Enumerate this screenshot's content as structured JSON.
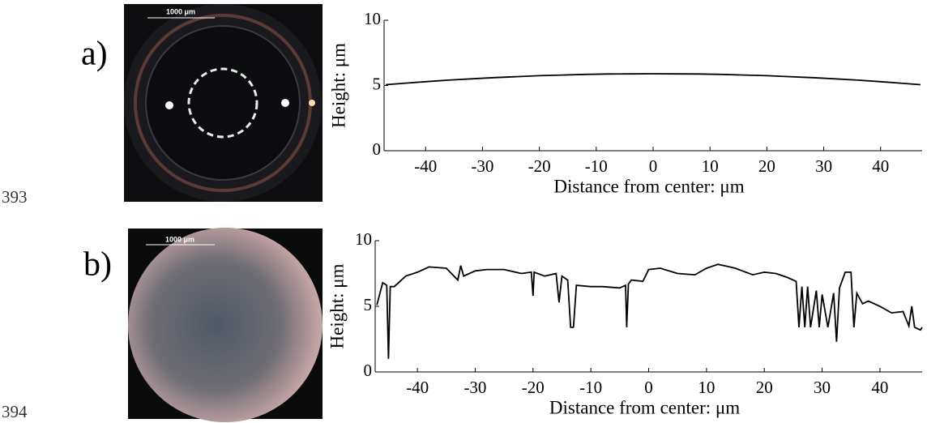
{
  "figure": {
    "line_numbers": [
      "393",
      "394"
    ],
    "panels": [
      {
        "label": "a)",
        "scale_bar": "1000 μm"
      },
      {
        "label": "b)",
        "scale_bar": "1000 μm"
      }
    ]
  },
  "chart_data": [
    {
      "type": "line",
      "xlabel": "Distance from center: μm",
      "ylabel": "Height: μm",
      "color": "#000000",
      "x": [
        -47,
        -44,
        -40,
        -36,
        -32,
        -28,
        -24,
        -20,
        -16,
        -12,
        -8,
        -4,
        0,
        4,
        8,
        12,
        16,
        20,
        24,
        28,
        32,
        36,
        40,
        44,
        47
      ],
      "values": [
        5.06,
        5.16,
        5.29,
        5.41,
        5.51,
        5.6,
        5.68,
        5.75,
        5.8,
        5.85,
        5.88,
        5.89,
        5.9,
        5.89,
        5.88,
        5.85,
        5.8,
        5.75,
        5.68,
        5.6,
        5.51,
        5.41,
        5.29,
        5.16,
        5.06
      ],
      "xlim": [
        -47.3,
        47.3
      ],
      "ylim": [
        0,
        10
      ],
      "xticks": [
        -40,
        -30,
        -20,
        -10,
        0,
        10,
        20,
        30,
        40
      ],
      "yticks": [
        0,
        5,
        10
      ]
    },
    {
      "type": "line",
      "xlabel": "Distance from center: μm",
      "ylabel": "Height: μm",
      "color": "#000000",
      "x": [
        -47,
        -46,
        -45.3,
        -45,
        -44.7,
        -44,
        -42,
        -40,
        -38,
        -35,
        -33,
        -32.5,
        -32,
        -30,
        -28,
        -25,
        -22,
        -20.3,
        -20,
        -19.8,
        -18,
        -16,
        -15.5,
        -15,
        -14,
        -13.5,
        -13,
        -12.5,
        -10,
        -8,
        -5,
        -4,
        -3.8,
        -3.5,
        -3,
        -1,
        0,
        2,
        5,
        8,
        10,
        12,
        15,
        18,
        20,
        22,
        24,
        25.5,
        26,
        26.5,
        27,
        27.5,
        28,
        29,
        29.5,
        30,
        31,
        32,
        32.5,
        33,
        34,
        35,
        35.5,
        36,
        37,
        38,
        40,
        42,
        44,
        45,
        45.5,
        46,
        47,
        47.3
      ],
      "values": [
        5.1,
        6.8,
        6.6,
        1.0,
        6.5,
        6.5,
        7.3,
        7.6,
        8.0,
        7.9,
        7.0,
        8.1,
        7.3,
        7.7,
        7.8,
        7.8,
        7.5,
        7.6,
        5.8,
        7.6,
        7.3,
        7.5,
        5.3,
        7.3,
        7.0,
        3.4,
        3.4,
        6.6,
        6.5,
        6.5,
        6.4,
        6.6,
        3.4,
        6.7,
        7.0,
        6.9,
        7.8,
        7.9,
        7.5,
        7.4,
        7.9,
        8.2,
        7.9,
        7.4,
        7.6,
        7.5,
        7.2,
        6.9,
        3.4,
        6.5,
        3.4,
        6.5,
        3.4,
        6.2,
        3.4,
        5.9,
        3.4,
        6.0,
        2.3,
        6.4,
        7.6,
        7.6,
        3.4,
        6.0,
        5.2,
        5.4,
        5.0,
        4.5,
        4.6,
        3.5,
        5.0,
        3.4,
        3.2,
        3.4
      ],
      "xlim": [
        -47.3,
        47.3
      ],
      "ylim": [
        0,
        10
      ],
      "xticks": [
        -40,
        -30,
        -20,
        -10,
        0,
        10,
        20,
        30,
        40
      ],
      "yticks": [
        0,
        5,
        10
      ]
    }
  ]
}
